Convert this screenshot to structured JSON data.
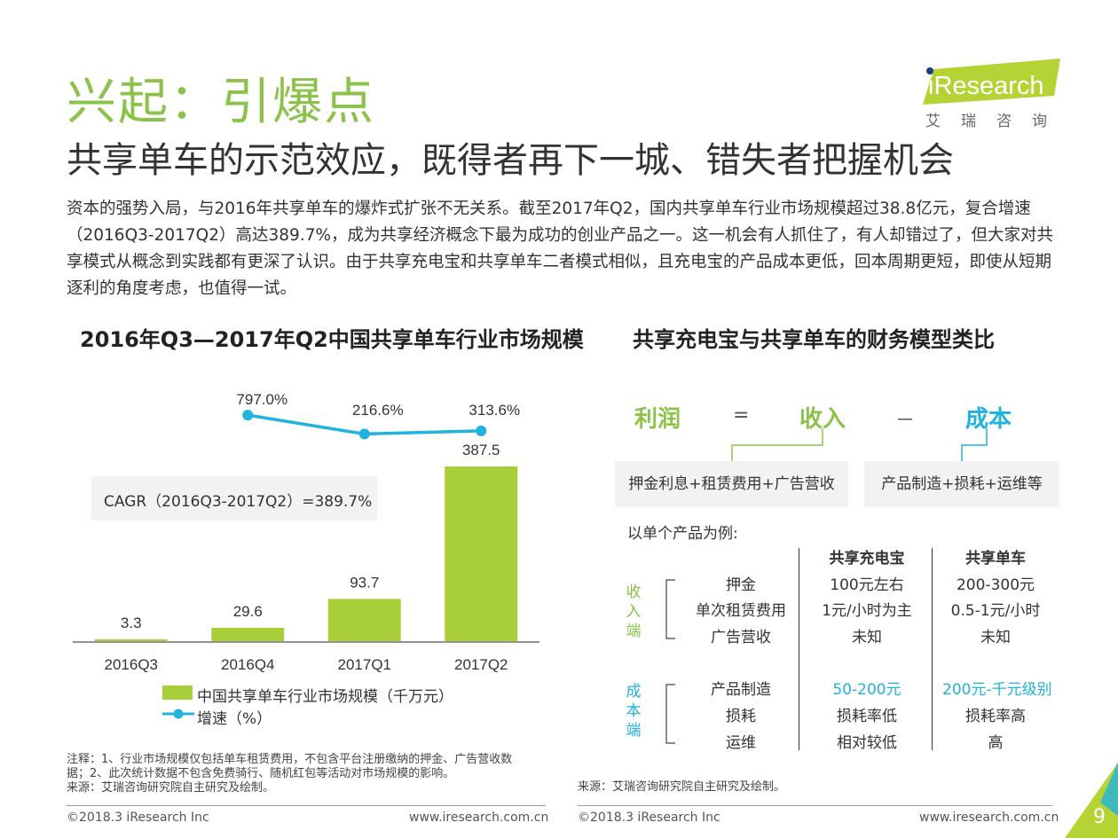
{
  "header": {
    "title": "兴起：引爆点",
    "subtitle": "共享单车的示范效应，既得者再下一城、错失者把握机会",
    "logo_text": "iResearch",
    "logo_sub": "艾瑞咨询"
  },
  "intro": "资本的强势入局，与2016年共享单车的爆炸式扩张不无关系。截至2017年Q2，国内共享单车行业市场规模超过38.8亿元，复合增速（2016Q3-2017Q2）高达389.7%，成为共享经济概念下最为成功的创业产品之一。这一机会有人抓住了，有人却错过了，但大家对共享模式从概念到实践都有更深了认识。由于共享充电宝和共享单车二者模式相似，且充电宝的产品成本更低，回本周期更短，即使从短期逐利的角度考虑，也值得一试。",
  "left_section": {
    "title": "2016年Q3—2017年Q2中国共享单车行业市场规模",
    "cagr": "CAGR（2016Q3-2017Q2）=389.7%",
    "notes": [
      "注释：1、行业市场规模仅包括单车租赁费用，不包含平台注册缴纳的押金、广告营收数",
      "据；2、此次统计数据不包含免费骑行、随机红包等活动对市场规模的影响。",
      "来源：艾瑞咨询研究院自主研究及绘制。"
    ]
  },
  "chart_data": {
    "type": "bar",
    "title": "2016年Q3—2017年Q2中国共享单车行业市场规模",
    "categories": [
      "2016Q3",
      "2016Q4",
      "2017Q1",
      "2017Q2"
    ],
    "series": [
      {
        "name": "中国共享单车行业市场规模（千万元）",
        "type": "bar",
        "values": [
          3.3,
          29.6,
          93.7,
          387.5
        ],
        "labels": [
          "3.3",
          "29.6",
          "93.7",
          "387.5"
        ],
        "color": "#a8cf3a"
      },
      {
        "name": "增速（%）",
        "type": "line",
        "x": [
          "2016Q4",
          "2017Q1",
          "2017Q2"
        ],
        "values": [
          797.0,
          216.6,
          313.6
        ],
        "labels": [
          "797.0%",
          "216.6%",
          "313.6%"
        ],
        "color": "#1fb3dd"
      }
    ],
    "annotation": "CAGR（2016Q3-2017Q2）=389.7%",
    "xlabel": "",
    "ylabel": "",
    "grid": false,
    "legend": "bottom"
  },
  "right_section": {
    "title": "共享充电宝与共享单车的财务模型类比",
    "formula": {
      "profit": "利润",
      "eq": "=",
      "revenue": "收入",
      "minus": "－",
      "cost": "成本"
    },
    "revenue_box": "押金利息+租赁费用+广告营收",
    "cost_box": "产品制造+损耗+运维等",
    "example_label": "以单个产品为例:",
    "col_headers": [
      "共享充电宝",
      "共享单车"
    ],
    "revenue_group_label": "收入端",
    "cost_group_label": "成本端",
    "revenue_rows": [
      {
        "item": "押金",
        "a": "100元左右",
        "b": "200-300元"
      },
      {
        "item": "单次租赁费用",
        "a": "1元/小时为主",
        "b": "0.5-1元/小时"
      },
      {
        "item": "广告营收",
        "a": "未知",
        "b": "未知"
      }
    ],
    "cost_rows": [
      {
        "item": "产品制造",
        "a": "50-200元",
        "b": "200元-千元级别"
      },
      {
        "item": "损耗",
        "a": "损耗率低",
        "b": "损耗率高"
      },
      {
        "item": "运维",
        "a": "相对较低",
        "b": "高"
      }
    ],
    "source": "来源：艾瑞咨询研究院自主研究及绘制。"
  },
  "footer": {
    "copyright": "©2018.3 iResearch Inc",
    "url": "www.iresearch.com.cn",
    "page": "9"
  },
  "colors": {
    "title_green": "#8bc34a",
    "bar_green": "#a8cf3a",
    "line_blue": "#1fb3dd"
  }
}
